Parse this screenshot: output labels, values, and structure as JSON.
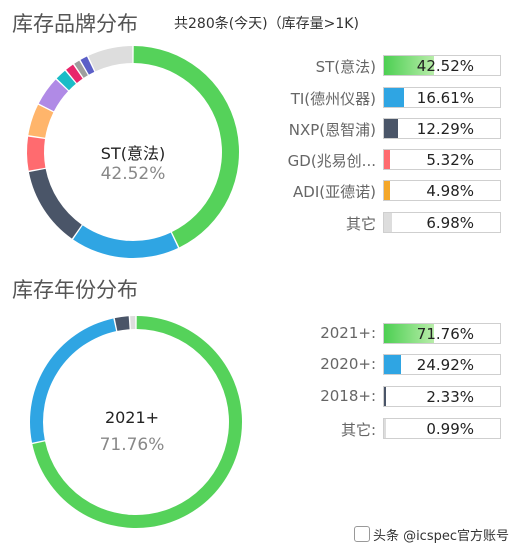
{
  "sections": {
    "brand": {
      "title": "库存品牌分布",
      "subtitle": "共280条(今天)（库存量>1K)"
    },
    "year": {
      "title": "库存年份分布"
    }
  },
  "watermark": "头条 @icspec官方账号",
  "chart_data": [
    {
      "type": "pie",
      "title": "库存品牌分布",
      "center_label": "ST(意法)",
      "center_value": "42.52%",
      "slices": [
        {
          "label": "ST(意法)",
          "value": 42.52,
          "value_text": "42.52%",
          "color": "#55d25a",
          "legend_color": "#4ccf52"
        },
        {
          "label": "TI(德州仪器)",
          "value": 16.61,
          "value_text": "16.61%",
          "color": "#2fa5e3",
          "legend_color": "#2fa5e3"
        },
        {
          "label": "NXP(恩智浦)",
          "value": 12.29,
          "value_text": "12.29%",
          "color": "#4a5568",
          "legend_color": "#4a5568"
        },
        {
          "label": "GD(兆易创...",
          "value": 5.32,
          "value_text": "5.32%",
          "color": "#ff6b6f",
          "legend_color": "#ff6b6f"
        },
        {
          "label": "ADI(亚德诺)",
          "value": 4.98,
          "value_text": "4.98%",
          "color": "#ffb56b",
          "legend_color": "#f4a72a"
        },
        {
          "label": "",
          "value": 4.6,
          "color": "#b08ae6"
        },
        {
          "label": "",
          "value": 1.9,
          "color": "#1bbcc7"
        },
        {
          "label": "",
          "value": 1.5,
          "color": "#e8266b"
        },
        {
          "label": "",
          "value": 1.1,
          "color": "#9e9e9e"
        },
        {
          "label": "",
          "value": 1.3,
          "color": "#5b5fc7"
        },
        {
          "label": "其它",
          "value": 6.98,
          "value_text": "6.98%",
          "color": "#dddddd",
          "legend_color": "#dddddd"
        }
      ],
      "legend_order": [
        0,
        1,
        2,
        3,
        4,
        10
      ]
    },
    {
      "type": "pie",
      "title": "库存年份分布",
      "center_label": "2021+",
      "center_value": "71.76%",
      "slices": [
        {
          "label": "2021+:",
          "value": 71.76,
          "value_text": "71.76%",
          "color": "#55d25a",
          "legend_color": "#4ccf52"
        },
        {
          "label": "2020+:",
          "value": 24.92,
          "value_text": "24.92%",
          "color": "#2fa5e3",
          "legend_color": "#2fa5e3"
        },
        {
          "label": "2018+:",
          "value": 2.33,
          "value_text": "2.33%",
          "color": "#4a5568",
          "legend_color": "#4a5568"
        },
        {
          "label": "其它:",
          "value": 0.99,
          "value_text": "0.99%",
          "color": "#dddddd",
          "legend_color": "#dddddd"
        }
      ],
      "legend_order": [
        0,
        1,
        2,
        3
      ]
    }
  ]
}
